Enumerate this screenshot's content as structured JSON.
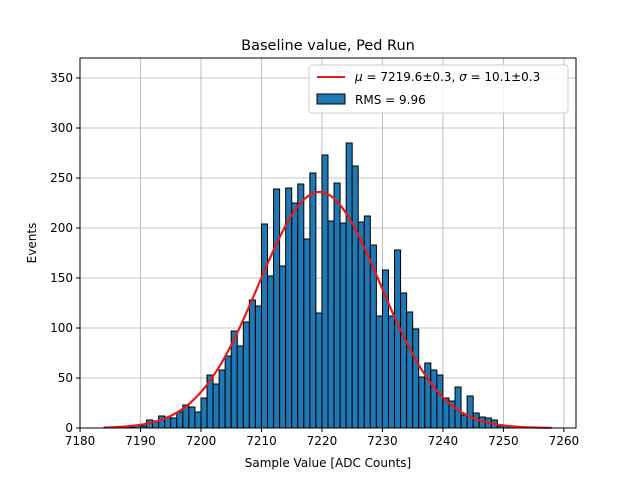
{
  "chart_data": {
    "type": "bar",
    "title": "Baseline value, Ped Run",
    "xlabel": "Sample Value [ADC Counts]",
    "ylabel": "Events",
    "xlim": [
      7180,
      7262
    ],
    "ylim": [
      0,
      370
    ],
    "xticks": [
      7180,
      7190,
      7200,
      7210,
      7220,
      7230,
      7240,
      7250,
      7260
    ],
    "yticks": [
      0,
      50,
      100,
      150,
      200,
      250,
      300,
      350
    ],
    "grid": true,
    "legend_position": "top-right",
    "bar_color": "#1f77b4",
    "fit_color": "#e41a1c",
    "histogram": {
      "name": "RMS = 9.96",
      "bin_width": 1,
      "bin_left_edges": [
        7184,
        7185,
        7186,
        7187,
        7188,
        7189,
        7190,
        7191,
        7192,
        7193,
        7194,
        7195,
        7196,
        7197,
        7198,
        7199,
        7200,
        7201,
        7202,
        7203,
        7204,
        7205,
        7206,
        7207,
        7208,
        7209,
        7210,
        7211,
        7212,
        7213,
        7214,
        7215,
        7216,
        7217,
        7218,
        7219,
        7220,
        7221,
        7222,
        7223,
        7224,
        7225,
        7226,
        7227,
        7228,
        7229,
        7230,
        7231,
        7232,
        7233,
        7234,
        7235,
        7236,
        7237,
        7238,
        7239,
        7240,
        7241,
        7242,
        7243,
        7244,
        7245,
        7246,
        7247,
        7248,
        7249,
        7250,
        7251,
        7252,
        7253,
        7254,
        7255,
        7256,
        7257
      ],
      "counts": [
        1,
        1,
        1,
        1,
        1,
        3,
        2,
        8,
        7,
        12,
        11,
        10,
        16,
        23,
        21,
        16,
        30,
        53,
        44,
        58,
        72,
        97,
        82,
        106,
        128,
        122,
        204,
        152,
        239,
        162,
        240,
        225,
        244,
        189,
        255,
        115,
        273,
        207,
        245,
        205,
        285,
        262,
        206,
        212,
        183,
        112,
        158,
        112,
        178,
        135,
        116,
        99,
        51,
        65,
        58,
        53,
        30,
        27,
        41,
        13,
        32,
        15,
        11,
        10,
        8,
        2,
        2,
        2,
        1,
        0,
        0,
        0,
        0,
        0
      ]
    },
    "fit": {
      "name": "$\\mu = 7219.6 \\pm 0.3$, $\\sigma = 10.1 \\pm 0.3$",
      "label_mu_symbol": "μ",
      "label_mu_text": " = 7219.6±0.3, ",
      "label_sigma_symbol": "σ",
      "label_sigma_text": " = 10.1±0.3",
      "mu": 7219.6,
      "sigma": 10.1,
      "amplitude": 236,
      "x_range": [
        7184,
        7258
      ]
    }
  }
}
